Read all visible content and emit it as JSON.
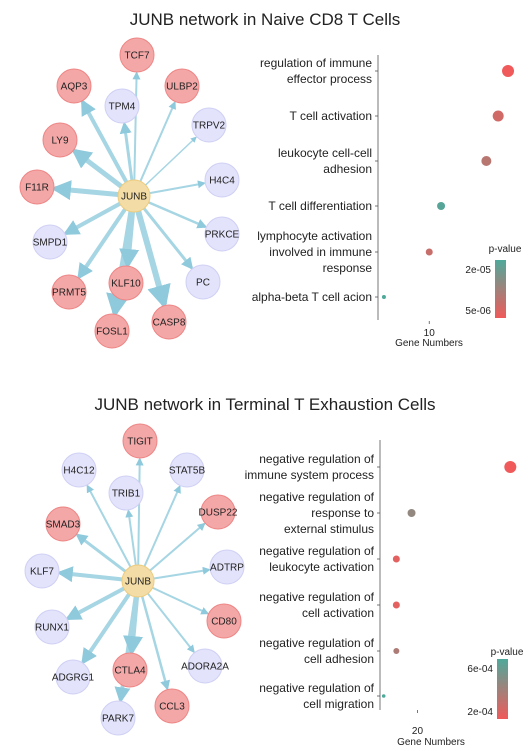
{
  "panels": [
    {
      "title": "JUNB network in Naive CD8 T Cells",
      "network": {
        "hub": "JUNB",
        "nodes": [
          {
            "label": "TCF7",
            "group": "red"
          },
          {
            "label": "ULBP2",
            "group": "red"
          },
          {
            "label": "TRPV2",
            "group": "blue"
          },
          {
            "label": "H4C4",
            "group": "blue"
          },
          {
            "label": "PRKCE",
            "group": "blue"
          },
          {
            "label": "PC",
            "group": "blue"
          },
          {
            "label": "CASP8",
            "group": "red"
          },
          {
            "label": "FOSL1",
            "group": "red"
          },
          {
            "label": "KLF10",
            "group": "red"
          },
          {
            "label": "PRMT5",
            "group": "red"
          },
          {
            "label": "SMPD1",
            "group": "blue"
          },
          {
            "label": "F11R",
            "group": "red"
          },
          {
            "label": "LY9",
            "group": "red"
          },
          {
            "label": "AQP3",
            "group": "red"
          },
          {
            "label": "TPM4",
            "group": "blue"
          }
        ]
      },
      "chart_data": {
        "type": "scatter",
        "categories": [
          "regulation of immune\neffector process",
          "T cell activation",
          "leukocyte cell-cell\nadhesion",
          "T cell differentiation",
          "lymphocyte activation\ninvolved in immune\nresponse",
          "alpha-beta T cell acion"
        ],
        "x": [
          14,
          13.5,
          12.9,
          10.6,
          10,
          7.7
        ],
        "p": [
          4e-06,
          8e-06,
          1.1e-05,
          2.3e-05,
          9e-06,
          2.4e-05
        ],
        "size": [
          6,
          5.5,
          5,
          4,
          3.5,
          2
        ],
        "xlabel": "Gene Numbers",
        "xticks": [
          10
        ],
        "xlim": [
          7.5,
          14.1
        ],
        "legend": {
          "title": "p-value",
          "labels": [
            "2e-05",
            "5e-06"
          ],
          "high_color": "#4fa99b",
          "low_color": "#f05a5a",
          "pmin": 4e-06,
          "pmax": 2.4e-05
        }
      }
    },
    {
      "title": "JUNB network in Terminal T Exhaustion Cells",
      "network": {
        "hub": "JUNB",
        "nodes": [
          {
            "label": "TIGIT",
            "group": "red"
          },
          {
            "label": "STAT5B",
            "group": "blue"
          },
          {
            "label": "DUSP22",
            "group": "red"
          },
          {
            "label": "ADTRP",
            "group": "blue"
          },
          {
            "label": "CD80",
            "group": "red"
          },
          {
            "label": "ADORA2A",
            "group": "blue"
          },
          {
            "label": "CCL3",
            "group": "red"
          },
          {
            "label": "PARK7",
            "group": "blue"
          },
          {
            "label": "CTLA4",
            "group": "red"
          },
          {
            "label": "ADGRG1",
            "group": "blue"
          },
          {
            "label": "RUNX1",
            "group": "blue"
          },
          {
            "label": "KLF7",
            "group": "blue"
          },
          {
            "label": "SMAD3",
            "group": "red"
          },
          {
            "label": "H4C12",
            "group": "blue"
          },
          {
            "label": "TRIB1",
            "group": "blue"
          }
        ]
      },
      "chart_data": {
        "type": "scatter",
        "categories": [
          "negative regulation of\nimmune system process",
          "negative regulation of\nresponse to\nexternal stimulus",
          "negative regulation of\nleukocyte activation",
          "negative regulation of\ncell activation",
          "negative regulation of\ncell adhesion",
          "negative regulation of\ncell migration"
        ],
        "x": [
          31,
          19.3,
          17.5,
          17.5,
          17.5,
          16
        ],
        "p": [
          0.0001,
          0.00045,
          0.00015,
          0.00015,
          0.00035,
          0.0007
        ],
        "size": [
          6,
          4,
          3.5,
          3.5,
          3,
          1.8
        ],
        "xlabel": "Gene Numbers",
        "xticks": [
          20
        ],
        "xlim": [
          15.8,
          31.2
        ],
        "legend": {
          "title": "p-value",
          "labels": [
            "6e-04",
            "2e-04"
          ],
          "high_color": "#4fa99b",
          "low_color": "#f05a5a",
          "pmin": 0.0001,
          "pmax": 0.0007
        }
      }
    }
  ]
}
